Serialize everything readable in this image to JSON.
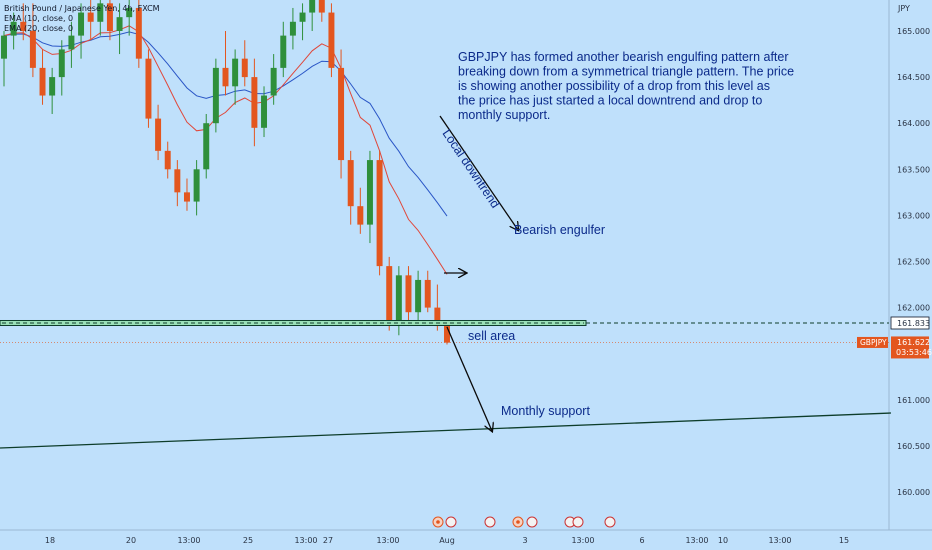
{
  "legend": {
    "symbol_line": "British Pound / Japanese Yen, 4h, FXCM",
    "ema10": "EMA (10, close, 0",
    "ema20": "EMA (20, close, 0"
  },
  "axis": {
    "currency": "JPY",
    "y_ticks": [
      "165.000",
      "164.500",
      "164.000",
      "163.500",
      "163.000",
      "162.500",
      "162.000",
      "161.000",
      "160.500",
      "160.000"
    ],
    "y_tick_values": [
      165.0,
      164.5,
      164.0,
      163.5,
      163.0,
      162.5,
      162.0,
      161.0,
      160.5,
      160.0
    ],
    "x_ticks": [
      "18",
      "20",
      "13:00",
      "25",
      "13:00",
      "27",
      "13:00",
      "Aug",
      "3",
      "13:00",
      "6",
      "13:00",
      "10",
      "13:00",
      "15"
    ],
    "ylim": [
      159.7,
      165.35
    ]
  },
  "price_labels": {
    "level": "161.833",
    "symbol": "GBPJPY",
    "current": "161.622",
    "countdown": "03:53:46"
  },
  "annotations": {
    "description": "GBPJPY has formed another bearish engulfing pattern after breaking down from a symmetrical triangle pattern. The price is showing another possibility of a drop from this level as the price has just started a local downtrend and drop to monthly support.",
    "local_downtrend": "Local downtrend",
    "bearish_engulfer": "Bearish engulfer",
    "sell_area": "sell area",
    "monthly_support": "Monthly support"
  },
  "colors": {
    "background": "#bfe0fb",
    "bull": "#2f8f3b",
    "bear": "#e3561f",
    "ema10": "#e0473a",
    "ema20": "#2a56c6",
    "text": "#0b2a8a",
    "support_line": "#0d3d2a",
    "level_fill": "#9be0b8"
  },
  "chart_data": {
    "type": "candlestick",
    "symbol": "GBPJPY",
    "timeframe": "4h",
    "candles": [
      [
        164.7,
        165.0,
        164.4,
        164.95
      ],
      [
        164.95,
        165.2,
        164.8,
        165.1
      ],
      [
        165.1,
        165.3,
        164.9,
        165.0
      ],
      [
        165.0,
        165.3,
        164.5,
        164.6
      ],
      [
        164.6,
        164.8,
        164.2,
        164.3
      ],
      [
        164.3,
        164.6,
        164.1,
        164.5
      ],
      [
        164.5,
        164.9,
        164.3,
        164.8
      ],
      [
        164.8,
        165.1,
        164.6,
        164.95
      ],
      [
        164.95,
        165.3,
        164.7,
        165.2
      ],
      [
        165.2,
        165.35,
        164.9,
        165.1
      ],
      [
        165.1,
        165.4,
        164.95,
        165.3
      ],
      [
        165.3,
        165.5,
        164.9,
        165.0
      ],
      [
        165.0,
        165.3,
        164.75,
        165.15
      ],
      [
        165.15,
        165.35,
        164.95,
        165.25
      ],
      [
        165.25,
        165.4,
        164.6,
        164.7
      ],
      [
        164.7,
        164.8,
        163.95,
        164.05
      ],
      [
        164.05,
        164.2,
        163.6,
        163.7
      ],
      [
        163.7,
        163.8,
        163.4,
        163.5
      ],
      [
        163.5,
        163.6,
        163.1,
        163.25
      ],
      [
        163.25,
        163.4,
        163.05,
        163.15
      ],
      [
        163.15,
        163.6,
        163.0,
        163.5
      ],
      [
        163.5,
        164.1,
        163.4,
        164.0
      ],
      [
        164.0,
        164.7,
        163.9,
        164.6
      ],
      [
        164.6,
        165.0,
        164.3,
        164.4
      ],
      [
        164.4,
        164.8,
        164.2,
        164.7
      ],
      [
        164.7,
        164.9,
        164.4,
        164.5
      ],
      [
        164.5,
        164.7,
        163.75,
        163.95
      ],
      [
        163.95,
        164.4,
        163.85,
        164.3
      ],
      [
        164.3,
        164.75,
        164.2,
        164.6
      ],
      [
        164.6,
        165.1,
        164.5,
        164.95
      ],
      [
        164.95,
        165.25,
        164.8,
        165.1
      ],
      [
        165.1,
        165.3,
        164.9,
        165.2
      ],
      [
        165.2,
        165.5,
        165.0,
        165.35
      ],
      [
        165.35,
        165.6,
        165.1,
        165.2
      ],
      [
        165.2,
        165.3,
        164.5,
        164.6
      ],
      [
        164.6,
        164.8,
        163.4,
        163.6
      ],
      [
        163.6,
        163.7,
        162.9,
        163.1
      ],
      [
        163.1,
        163.3,
        162.8,
        162.9
      ],
      [
        162.9,
        163.7,
        162.7,
        163.6
      ],
      [
        163.6,
        163.7,
        162.35,
        162.45
      ],
      [
        162.45,
        162.55,
        161.75,
        161.85
      ],
      [
        161.85,
        162.45,
        161.7,
        162.35
      ],
      [
        162.35,
        162.45,
        161.8,
        161.95
      ],
      [
        161.95,
        162.4,
        161.85,
        162.3
      ],
      [
        162.3,
        162.4,
        161.95,
        162.0
      ],
      [
        162.0,
        162.25,
        161.75,
        161.8
      ],
      [
        161.8,
        161.85,
        161.6,
        161.62
      ]
    ],
    "level_price": 161.833,
    "current_price": 161.622
  }
}
